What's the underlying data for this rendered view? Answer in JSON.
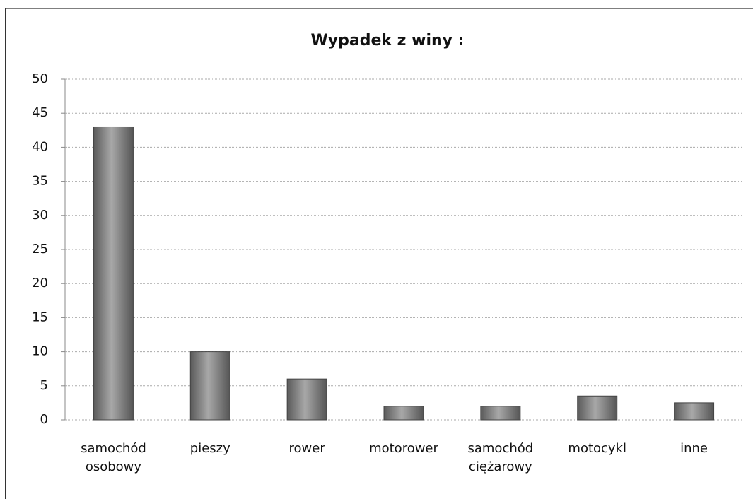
{
  "chart_data": {
    "type": "bar",
    "title": "Wypadek z winy :",
    "categories": [
      "samochód osobowy",
      "pieszy",
      "rower",
      "motorower",
      "samochód ciężarowy",
      "motocykl",
      "inne"
    ],
    "values": [
      43,
      10,
      6,
      2,
      2,
      3.5,
      2.5
    ],
    "color": "#7a7a7a",
    "ylim": [
      0,
      50
    ],
    "yticks": [
      0,
      5,
      10,
      15,
      20,
      25,
      30,
      35,
      40,
      45,
      50
    ],
    "grid": true
  }
}
